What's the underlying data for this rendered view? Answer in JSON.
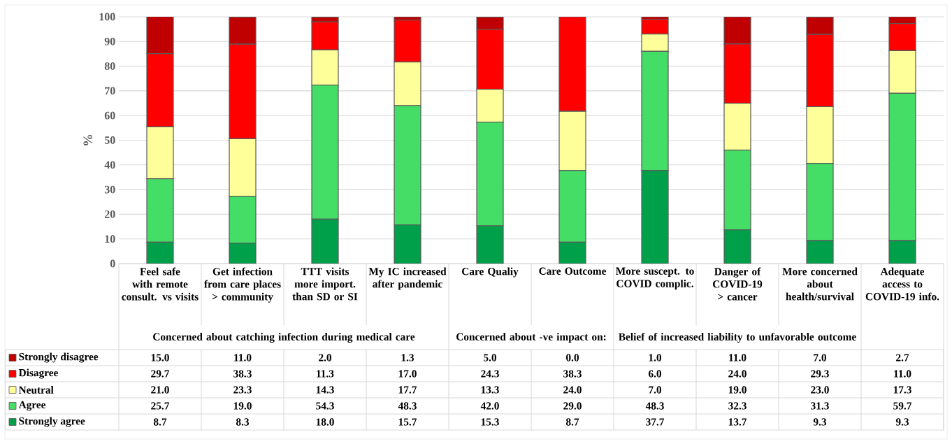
{
  "chart_data": {
    "type": "bar",
    "stacked": true,
    "ylabel": "%",
    "categories": [
      "Feel safe with remote consult. vs visits",
      "Get infection from care places > community",
      "TTT visits more import. than SD or SI",
      "My IC increased after pandemic",
      "Care Qualiy",
      "Care Outcome",
      "More suscept. to COVID complic.",
      "Danger of COVID-19 > cancer",
      "More concerned about health/survival",
      "Adequate access to COVID-19 info."
    ],
    "series": [
      {
        "name": "Strongly agree",
        "color": "#00a04a",
        "values": [
          8.7,
          8.3,
          18.0,
          15.7,
          15.3,
          8.7,
          37.7,
          13.7,
          9.3,
          9.3
        ],
        "value_labels": [
          "8.7",
          "8.3",
          "18.0",
          "15.7",
          "15.3",
          "8.7",
          "37.7",
          "13.7",
          "9.3",
          "9.3"
        ]
      },
      {
        "name": "Agree",
        "color": "#44dd66",
        "values": [
          25.7,
          19.0,
          54.3,
          48.3,
          42.0,
          29.0,
          48.3,
          32.3,
          31.3,
          59.7
        ],
        "value_labels": [
          "25.7",
          "19.0",
          "54.3",
          "48.3",
          "42.0",
          "29.0",
          "48.3",
          "32.3",
          "31.3",
          "59.7"
        ]
      },
      {
        "name": "Neutral",
        "color": "#ffff99",
        "values": [
          21.0,
          23.3,
          14.3,
          17.7,
          13.3,
          24.0,
          7.0,
          19.0,
          23.0,
          17.3
        ],
        "value_labels": [
          "21.0",
          "23.3",
          "14.3",
          "17.7",
          "13.3",
          "24.0",
          "7.0",
          "19.0",
          "23.0",
          "17.3"
        ]
      },
      {
        "name": "Disagree",
        "color": "#ff0000",
        "values": [
          29.7,
          38.3,
          11.3,
          17.0,
          24.3,
          38.3,
          6.0,
          24.0,
          29.3,
          11.0
        ],
        "value_labels": [
          "29.7",
          "38.3",
          "11.3",
          "17.0",
          "24.3",
          "38.3",
          "6.0",
          "24.0",
          "29.3",
          "11.0"
        ]
      },
      {
        "name": "Strongly disagree",
        "color": "#c00000",
        "values": [
          15.0,
          11.0,
          2.0,
          1.3,
          5.0,
          0.0,
          1.0,
          11.0,
          7.0,
          2.7
        ],
        "value_labels": [
          "15.0",
          "11.0",
          "2.0",
          "1.3",
          "5.0",
          "0.0",
          "1.0",
          "11.0",
          "7.0",
          "2.7"
        ]
      }
    ],
    "ylim": [
      0,
      100
    ],
    "yticks": [
      0,
      10,
      20,
      30,
      40,
      50,
      60,
      70,
      80,
      90,
      100
    ],
    "grid": "y",
    "legend": "bottom",
    "annotations": [
      "Concerned about catching infection during medical care",
      "Concerned about -ve impact on:",
      "Belief of increased liability to unfavorable outcome"
    ]
  }
}
